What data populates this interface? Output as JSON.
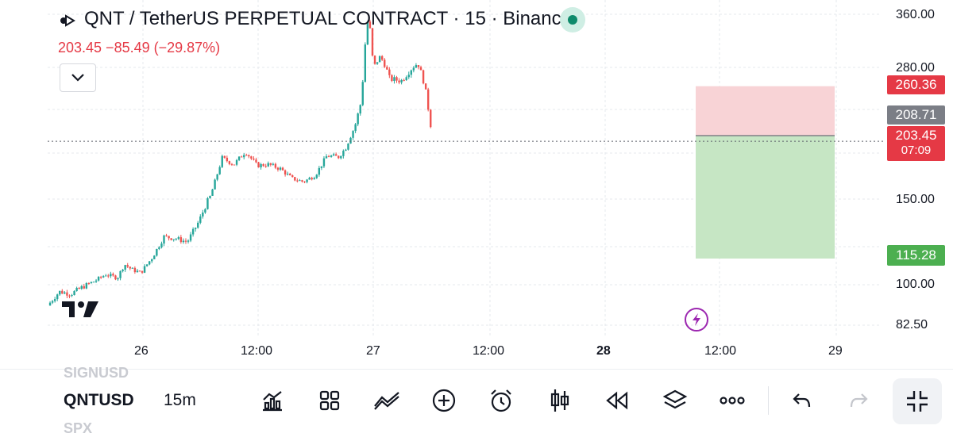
{
  "header": {
    "symbol_title": "QNT / TetherUS PERPETUAL CONTRACT · 15 · Binance",
    "price_change": "203.45  −85.49 (−29.87%)"
  },
  "price_axis": {
    "labels": [
      "360.00",
      "280.00",
      "150.00",
      "100.00",
      "82.50"
    ]
  },
  "time_axis": {
    "labels": [
      "26",
      "12:00",
      "27",
      "12:00",
      "28",
      "12:00",
      "29"
    ]
  },
  "price_tags": {
    "stop_loss": "260.36",
    "entry": "208.71",
    "last_price": "203.45",
    "countdown": "07:09",
    "take_profit": "115.28"
  },
  "colors": {
    "up": "#26a69a",
    "down": "#ef5350",
    "stop_zone": "#f8d3d6",
    "target_zone": "#c6e6c4",
    "accent_red": "#e53945",
    "accent_green": "#4caf50"
  },
  "bottom_bar": {
    "symbol_prev": "SIGNUSD",
    "symbol_current": "QNTUSD",
    "symbol_next": "SPX",
    "timeframe": "15m",
    "tools": [
      "chart-type-icon",
      "layouts-icon",
      "indicators-icon",
      "add-icon",
      "alert-clock-icon",
      "candles-icon",
      "replay-icon",
      "layers-icon",
      "more-icon",
      "undo-icon",
      "redo-icon",
      "fullscreen-icon"
    ]
  },
  "chart_data": {
    "type": "candlestick",
    "symbol": "QNTUSD",
    "interval": "15",
    "x_ticks": [
      "26",
      "12:00",
      "27",
      "12:00",
      "28",
      "12:00",
      "29"
    ],
    "y_ticks": [
      360.0,
      280.0,
      150.0,
      100.0,
      82.5
    ],
    "close_path": [
      [
        0,
        91
      ],
      [
        0.05,
        97
      ],
      [
        0.1,
        96
      ],
      [
        0.15,
        99
      ],
      [
        0.2,
        102
      ],
      [
        0.25,
        106
      ],
      [
        0.3,
        104
      ],
      [
        0.33,
        112
      ],
      [
        0.36,
        109
      ],
      [
        0.4,
        107
      ],
      [
        0.45,
        116
      ],
      [
        0.5,
        128
      ],
      [
        0.55,
        127
      ],
      [
        0.6,
        125
      ],
      [
        0.65,
        137
      ],
      [
        0.7,
        153
      ],
      [
        0.75,
        188
      ],
      [
        0.8,
        182
      ],
      [
        0.85,
        194
      ],
      [
        0.9,
        181
      ],
      [
        0.95,
        182
      ],
      [
        1.0,
        178
      ],
      [
        1.05,
        169
      ],
      [
        1.1,
        166
      ],
      [
        1.15,
        172
      ],
      [
        1.2,
        190
      ],
      [
        1.25,
        189
      ],
      [
        1.28,
        197
      ],
      [
        1.32,
        218
      ],
      [
        1.35,
        247
      ],
      [
        1.37,
        340
      ],
      [
        1.38,
        358
      ],
      [
        1.4,
        280
      ],
      [
        1.43,
        297
      ],
      [
        1.47,
        268
      ],
      [
        1.52,
        266
      ],
      [
        1.56,
        278
      ],
      [
        1.59,
        286
      ],
      [
        1.62,
        262
      ],
      [
        1.64,
        230
      ],
      [
        1.655,
        203.45
      ]
    ],
    "position": {
      "entry": 208.71,
      "stop_loss": 260.36,
      "take_profit": 115.28,
      "last_price": 203.45
    }
  }
}
